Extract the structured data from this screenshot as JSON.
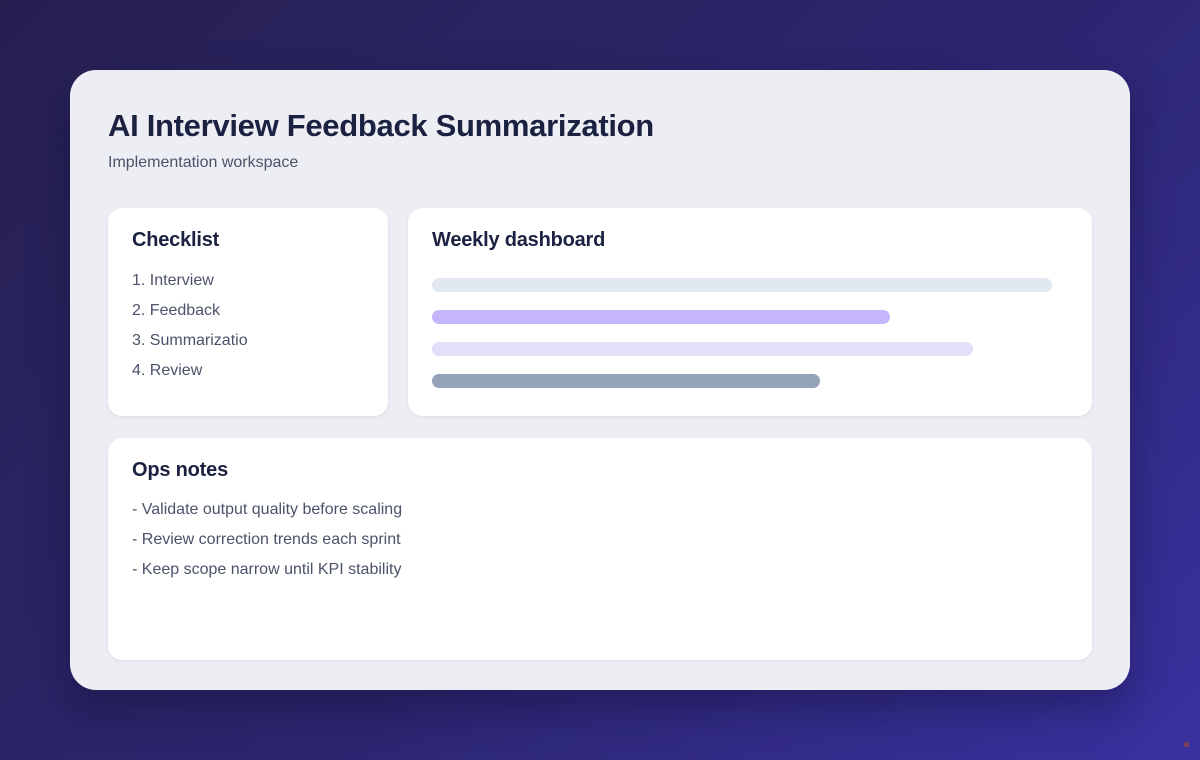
{
  "header": {
    "title": "AI Interview Feedback Summarization",
    "subtitle": "Implementation workspace"
  },
  "checklist": {
    "title": "Checklist",
    "items": [
      "1. Interview",
      "2. Feedback",
      "3. Summarizatio",
      "4. Review"
    ]
  },
  "dashboard": {
    "title": "Weekly dashboard",
    "bars": [
      {
        "name": "progress-bar-1",
        "width_pct": 97.5,
        "color": "#e2e8f0"
      },
      {
        "name": "progress-bar-2",
        "width_pct": 72,
        "color": "#c4b5fd"
      },
      {
        "name": "progress-bar-3",
        "width_pct": 85,
        "color": "#e4def9"
      },
      {
        "name": "progress-bar-4",
        "width_pct": 61,
        "color": "#94a3b8"
      }
    ]
  },
  "ops_notes": {
    "title": "Ops notes",
    "items": [
      "- Validate output quality before scaling",
      "- Review correction trends each sprint",
      "- Keep scope narrow until KPI stability"
    ]
  },
  "theme": {
    "background_gradient_start": "#262051",
    "background_gradient_end": "#39319f",
    "panel_background": "#ededf4",
    "card_background": "#ffffff",
    "heading_color": "#1b2140",
    "body_text_color": "#4b5369"
  }
}
